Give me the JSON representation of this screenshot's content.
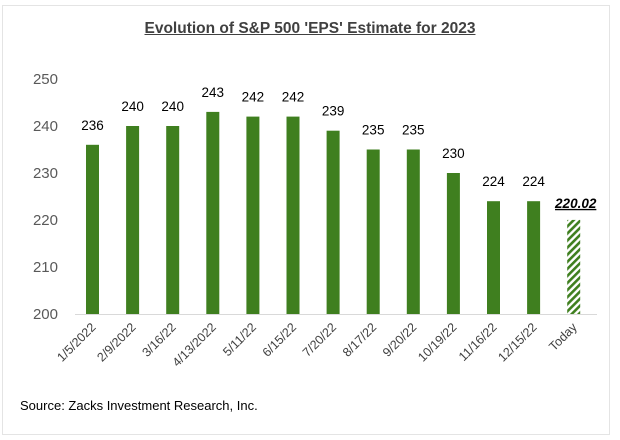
{
  "chart_data": {
    "type": "bar",
    "title": "Evolution of S&P 500 'EPS' Estimate for 2023",
    "categories": [
      "1/5/2022",
      "2/9/2022",
      "3/16/22",
      "4/13/2022",
      "5/11/22",
      "6/15/22",
      "7/20/22",
      "8/17/22",
      "9/20/22",
      "10/19/22",
      "11/16/22",
      "12/15/22",
      "Today"
    ],
    "values": [
      236,
      240,
      240,
      243,
      242,
      242,
      239,
      235,
      235,
      230,
      224,
      224,
      220.02
    ],
    "data_labels": [
      "236",
      "240",
      "240",
      "243",
      "242",
      "242",
      "239",
      "235",
      "235",
      "230",
      "224",
      "224",
      "220.02"
    ],
    "ylim": [
      200,
      250
    ],
    "yticks": [
      200,
      210,
      220,
      230,
      240,
      250
    ],
    "grid": false,
    "legend": "none",
    "bar_color": "#3f7f1f",
    "highlight_style": "hatched last bar with bold italic underlined label",
    "xlabel": "",
    "ylabel": ""
  },
  "source": "Source: Zacks Investment Research, Inc."
}
